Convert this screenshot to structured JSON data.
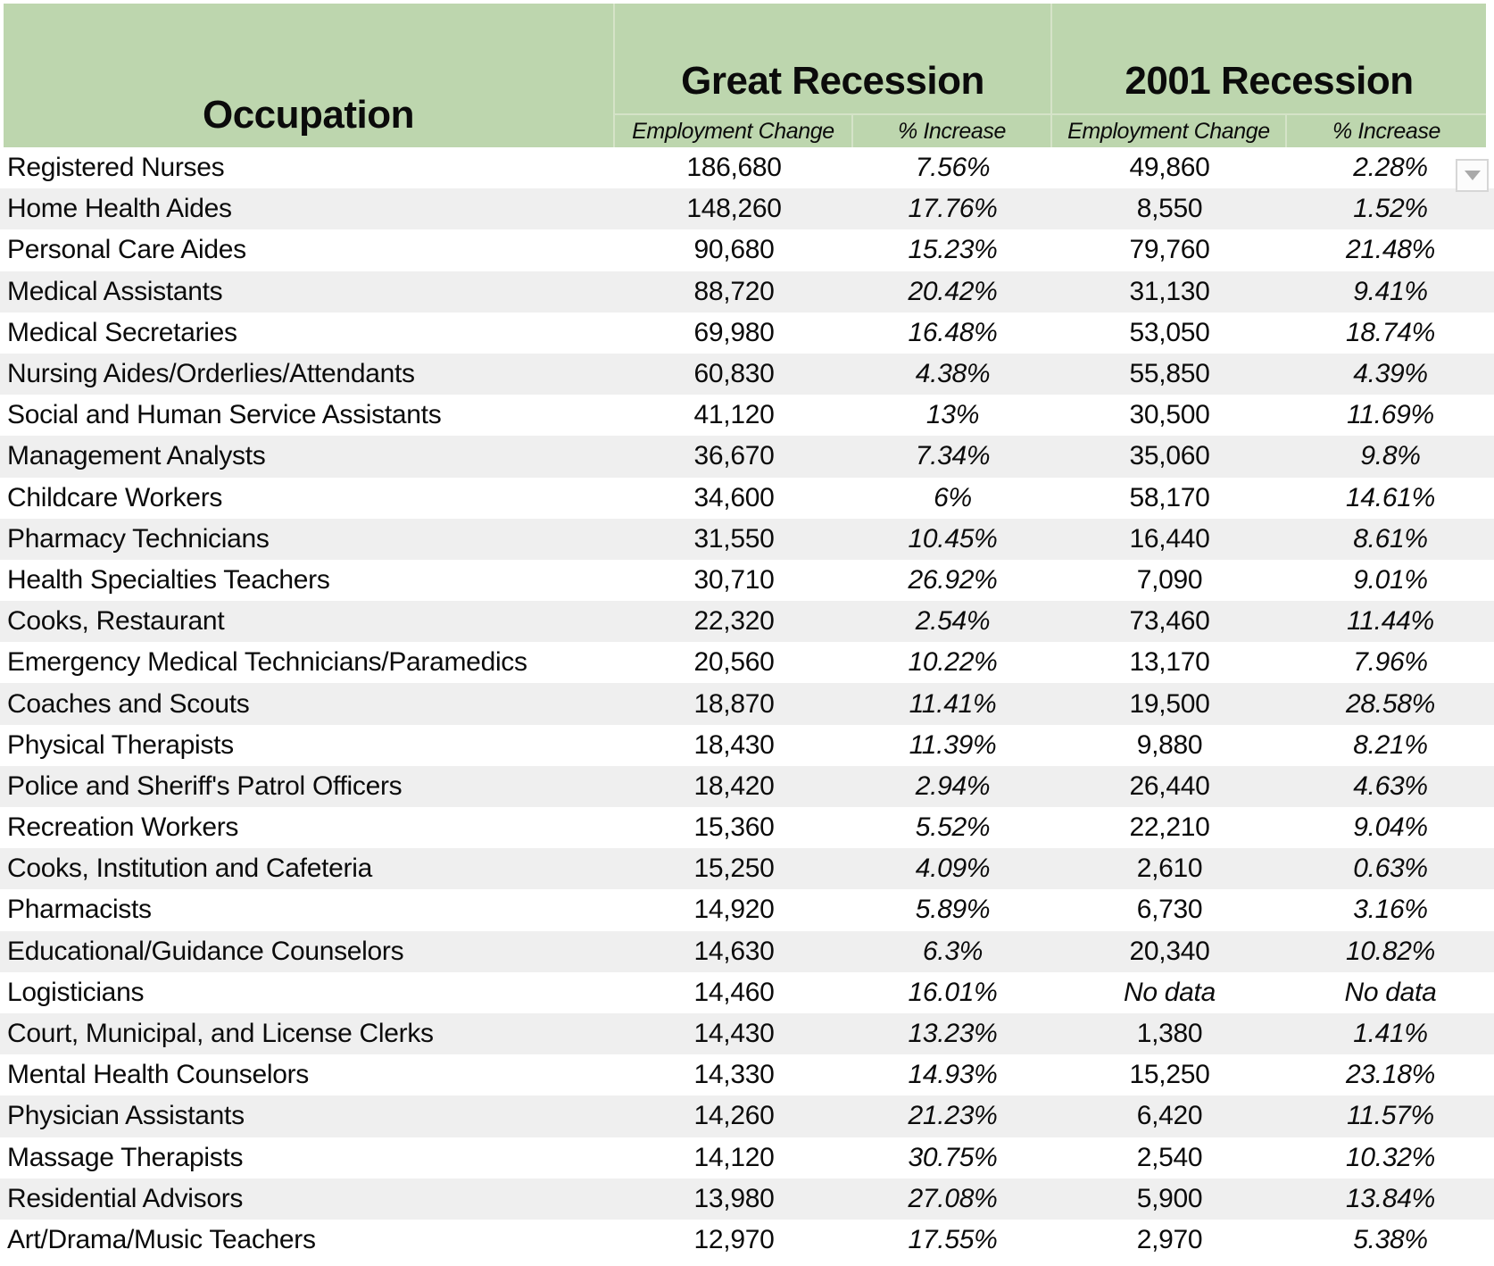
{
  "table": {
    "occupation_header": "Occupation",
    "groups": [
      {
        "label": "Great Recession",
        "subcolumns": [
          "Employment Change",
          "% Increase"
        ]
      },
      {
        "label": "2001 Recession",
        "subcolumns": [
          "Employment Change",
          "% Increase"
        ]
      }
    ],
    "rows": [
      {
        "occupation": "Registered Nurses",
        "values": [
          "186,680",
          "7.56%",
          "49,860",
          "2.28%"
        ]
      },
      {
        "occupation": "Home Health Aides",
        "values": [
          "148,260",
          "17.76%",
          "8,550",
          "1.52%"
        ]
      },
      {
        "occupation": "Personal Care Aides",
        "values": [
          "90,680",
          "15.23%",
          "79,760",
          "21.48%"
        ]
      },
      {
        "occupation": "Medical Assistants",
        "values": [
          "88,720",
          "20.42%",
          "31,130",
          "9.41%"
        ]
      },
      {
        "occupation": "Medical Secretaries",
        "values": [
          "69,980",
          "16.48%",
          "53,050",
          "18.74%"
        ]
      },
      {
        "occupation": "Nursing Aides/Orderlies/Attendants",
        "values": [
          "60,830",
          "4.38%",
          "55,850",
          "4.39%"
        ]
      },
      {
        "occupation": "Social and Human Service Assistants",
        "values": [
          "41,120",
          "13%",
          "30,500",
          "11.69%"
        ]
      },
      {
        "occupation": "Management Analysts",
        "values": [
          "36,670",
          "7.34%",
          "35,060",
          "9.8%"
        ]
      },
      {
        "occupation": "Childcare Workers",
        "values": [
          "34,600",
          "6%",
          "58,170",
          "14.61%"
        ]
      },
      {
        "occupation": "Pharmacy Technicians",
        "values": [
          "31,550",
          "10.45%",
          "16,440",
          "8.61%"
        ]
      },
      {
        "occupation": "Health Specialties Teachers",
        "values": [
          "30,710",
          "26.92%",
          "7,090",
          "9.01%"
        ]
      },
      {
        "occupation": "Cooks, Restaurant",
        "values": [
          "22,320",
          "2.54%",
          "73,460",
          "11.44%"
        ]
      },
      {
        "occupation": "Emergency Medical Technicians/Paramedics",
        "values": [
          "20,560",
          "10.22%",
          "13,170",
          "7.96%"
        ]
      },
      {
        "occupation": "Coaches and Scouts",
        "values": [
          "18,870",
          "11.41%",
          "19,500",
          "28.58%"
        ]
      },
      {
        "occupation": "Physical Therapists",
        "values": [
          "18,430",
          "11.39%",
          "9,880",
          "8.21%"
        ]
      },
      {
        "occupation": "Police and Sheriff's Patrol Officers",
        "values": [
          "18,420",
          "2.94%",
          "26,440",
          "4.63%"
        ]
      },
      {
        "occupation": "Recreation Workers",
        "values": [
          "15,360",
          "5.52%",
          "22,210",
          "9.04%"
        ]
      },
      {
        "occupation": "Cooks, Institution and Cafeteria",
        "values": [
          "15,250",
          "4.09%",
          "2,610",
          "0.63%"
        ]
      },
      {
        "occupation": "Pharmacists",
        "values": [
          "14,920",
          "5.89%",
          "6,730",
          "3.16%"
        ]
      },
      {
        "occupation": "Educational/Guidance Counselors",
        "values": [
          "14,630",
          "6.3%",
          "20,340",
          "10.82%"
        ]
      },
      {
        "occupation": "Logisticians",
        "values": [
          "14,460",
          "16.01%",
          "No data",
          "No data"
        ]
      },
      {
        "occupation": "Court, Municipal, and License Clerks",
        "values": [
          "14,430",
          "13.23%",
          "1,380",
          "1.41%"
        ]
      },
      {
        "occupation": "Mental Health Counselors",
        "values": [
          "14,330",
          "14.93%",
          "15,250",
          "23.18%"
        ]
      },
      {
        "occupation": "Physician Assistants",
        "values": [
          "14,260",
          "21.23%",
          "6,420",
          "11.57%"
        ]
      },
      {
        "occupation": "Massage Therapists",
        "values": [
          "14,120",
          "30.75%",
          "2,540",
          "10.32%"
        ]
      },
      {
        "occupation": "Residential Advisors",
        "values": [
          "13,980",
          "27.08%",
          "5,900",
          "13.84%"
        ]
      },
      {
        "occupation": "Art/Drama/Music Teachers",
        "values": [
          "12,970",
          "17.55%",
          "2,970",
          "5.38%"
        ]
      }
    ],
    "no_data_text": "No data"
  },
  "filter_button": {
    "icon": "chevron-down"
  },
  "colors": {
    "header_green": "#bdd6ae",
    "header_seam": "#d5e3c8",
    "stripe_gray": "#efefef",
    "text": "#0b0b0b",
    "dropdown_border": "#d6d6d6",
    "dropdown_arrow": "#a9a9a9"
  }
}
